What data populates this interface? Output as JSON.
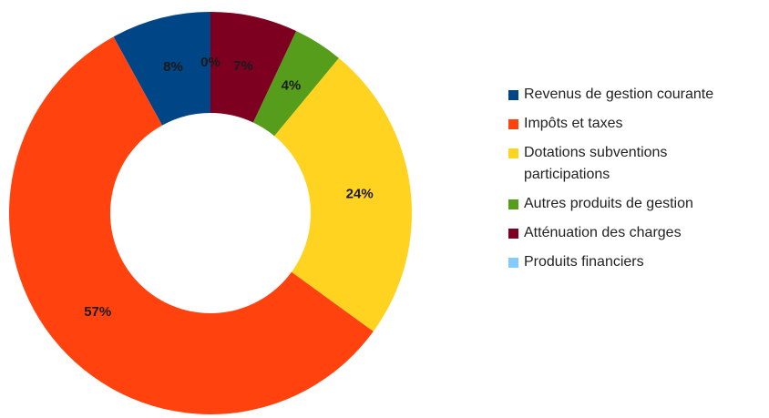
{
  "chart_data": {
    "type": "donut",
    "categories": [
      "Revenus de gestion courante",
      "Impôts et taxes",
      "Dotations subventions participations",
      "Autres produits de gestion",
      "Atténuation des charges",
      "Produits financiers"
    ],
    "values": [
      8,
      57,
      24,
      4,
      7,
      0
    ],
    "value_labels": [
      "8%",
      "57%",
      "24%",
      "4%",
      "7%",
      "0%"
    ],
    "colors": [
      "#004586",
      "#ff420e",
      "#ffd320",
      "#579d1c",
      "#7e0021",
      "#83caff"
    ],
    "legend": "right"
  }
}
